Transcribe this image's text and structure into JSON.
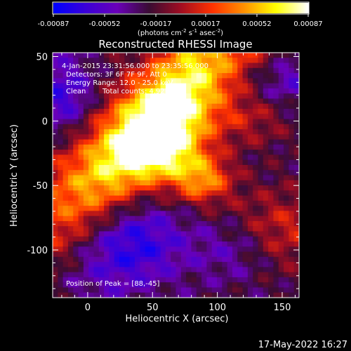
{
  "chart_data": {
    "type": "heatmap",
    "title": "Reconstructed RHESSI Image",
    "xlabel": "Heliocentric X (arcsec)",
    "ylabel": "Heliocentric Y (arcsec)",
    "x_ticks": [
      "0",
      "50",
      "100",
      "150"
    ],
    "y_ticks": [
      "50",
      "0",
      "-50",
      "-100"
    ],
    "xlim": [
      -27,
      163
    ],
    "ylim": [
      -137,
      53
    ],
    "colorbar": {
      "ticks": [
        "-0.00087",
        "-0.00052",
        "-0.00017",
        "0.00017",
        "0.00052",
        "0.00087"
      ],
      "label_parts": [
        "(photons cm",
        "-2",
        " s",
        "-1",
        " asec",
        "-2",
        ")"
      ],
      "range": [
        -0.00087,
        0.00087
      ],
      "colormap": [
        "#0000ff",
        "#3b00d8",
        "#6a00b8",
        "#3a0c33",
        "#a00d22",
        "#ff3200",
        "#ff9100",
        "#ffff00",
        "#ffffff"
      ]
    },
    "annotations": {
      "time_range": "4-Jan-2015 23:31:56.000 to 23:35:56.000",
      "detectors": "Detectors: 3F 6F 7F 9F, Att 0",
      "energy_range": "Energy Range: 12.0 - 25.0 keV",
      "clean_label": "Clean",
      "total_counts": "Total counts: 4.92E+03",
      "peak": "Position of Peak = [88,-45]"
    },
    "peak_position": [
      88,
      -45
    ],
    "timestamp": "17-May-2022 16:27"
  },
  "colors": {
    "background": "#000000",
    "frame": "#ffffff"
  }
}
